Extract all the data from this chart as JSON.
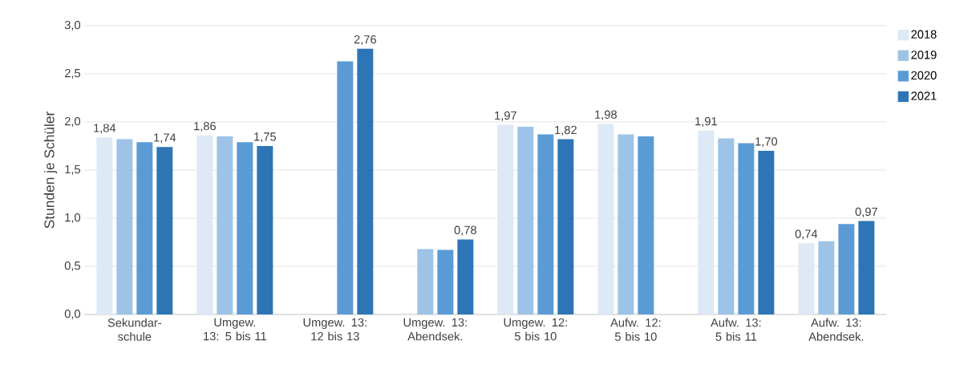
{
  "chart_data": {
    "type": "bar",
    "ylabel": "Stunden je Schüler",
    "categories": [
      "Sekundar-schule",
      "Umgew. 13: 5 bis 11",
      "Umgew. 13: 12 bis 13",
      "Umgew. 13: Abendsek.",
      "Umgew. 12: 5 bis 10",
      "Aufw. 12: 5 bis 10",
      "Aufw. 13: 5 bis 11",
      "Aufw. 13: Abendsek."
    ],
    "series": [
      {
        "name": "2018",
        "color": "#dde9f5",
        "values": [
          1.84,
          1.86,
          null,
          null,
          1.97,
          1.98,
          1.91,
          0.74
        ],
        "value_labels": [
          "1,84",
          "1,86",
          null,
          null,
          "1,97",
          "1,98",
          "1,91",
          "0,74"
        ]
      },
      {
        "name": "2019",
        "color": "#9dc3e6",
        "values": [
          1.82,
          1.85,
          null,
          0.68,
          1.95,
          1.87,
          1.83,
          0.76
        ],
        "value_labels": [
          null,
          null,
          null,
          null,
          null,
          null,
          null,
          null
        ]
      },
      {
        "name": "2020",
        "color": "#5b9bd5",
        "values": [
          1.79,
          1.79,
          2.63,
          0.67,
          1.87,
          1.85,
          1.78,
          0.94
        ],
        "value_labels": [
          null,
          null,
          null,
          null,
          null,
          null,
          null,
          null
        ]
      },
      {
        "name": "2021",
        "color": "#2e75b6",
        "values": [
          1.74,
          1.75,
          2.76,
          0.78,
          1.82,
          null,
          1.7,
          0.97
        ],
        "value_labels": [
          "1,74",
          "1,75",
          "2,76",
          "0,78",
          "1,82",
          null,
          "1,70",
          "0,97"
        ]
      }
    ],
    "ylim": [
      0,
      3
    ],
    "yticks": [
      {
        "value": 0,
        "label": "0,0"
      },
      {
        "value": 0.5,
        "label": "0,5"
      },
      {
        "value": 1,
        "label": "1,0"
      },
      {
        "value": 1.5,
        "label": "1,5"
      },
      {
        "value": 2,
        "label": "2,0"
      },
      {
        "value": 2.5,
        "label": "2,5"
      },
      {
        "value": 3,
        "label": "3,0"
      }
    ],
    "grid": "y",
    "legend": "right"
  }
}
